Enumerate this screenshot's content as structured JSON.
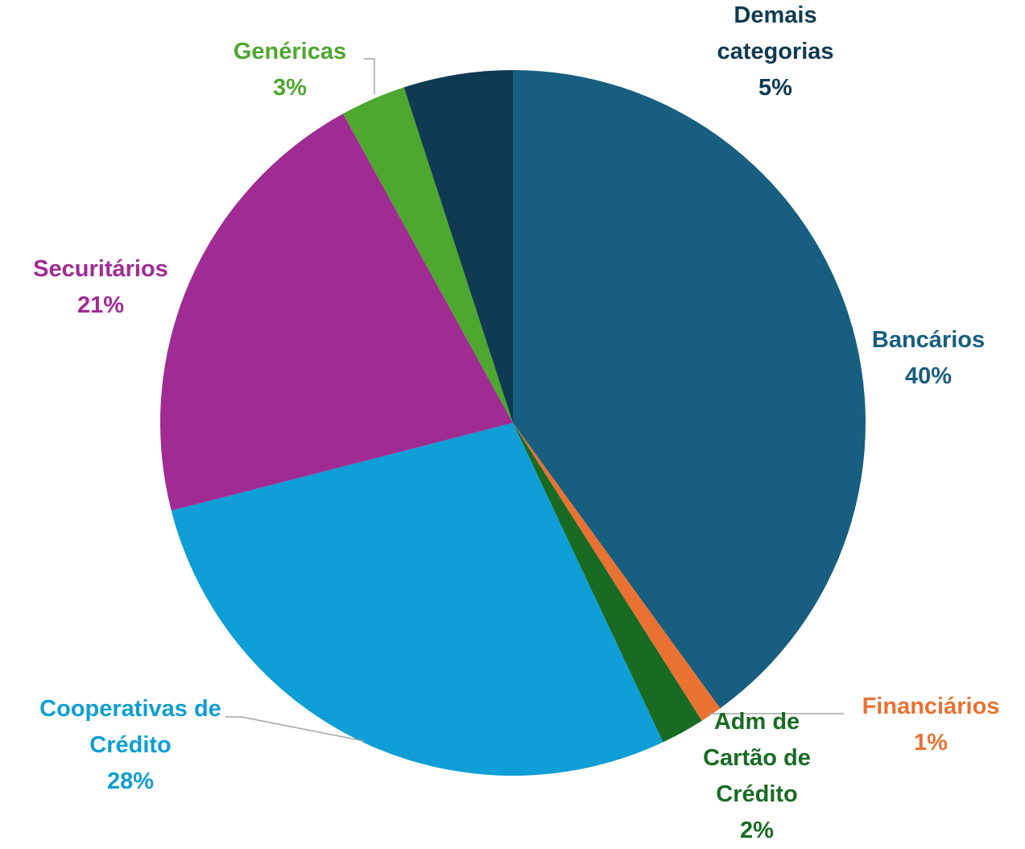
{
  "chart_data": {
    "type": "pie",
    "categories": [
      "Bancários",
      "Financiários",
      "Adm de Cartão de Crédito",
      "Cooperativas de Crédito",
      "Securitários",
      "Genéricas",
      "Demais categorias"
    ],
    "values": [
      40,
      1,
      2,
      28,
      21,
      3,
      5
    ],
    "value_labels": [
      "40%",
      "1%",
      "2%",
      "28%",
      "21%",
      "3%",
      "5%"
    ],
    "colors": [
      "#175e80",
      "#e97132",
      "#196b24",
      "#0f9ed5",
      "#a02b93",
      "#4ea72e",
      "#0e3a52"
    ]
  }
}
